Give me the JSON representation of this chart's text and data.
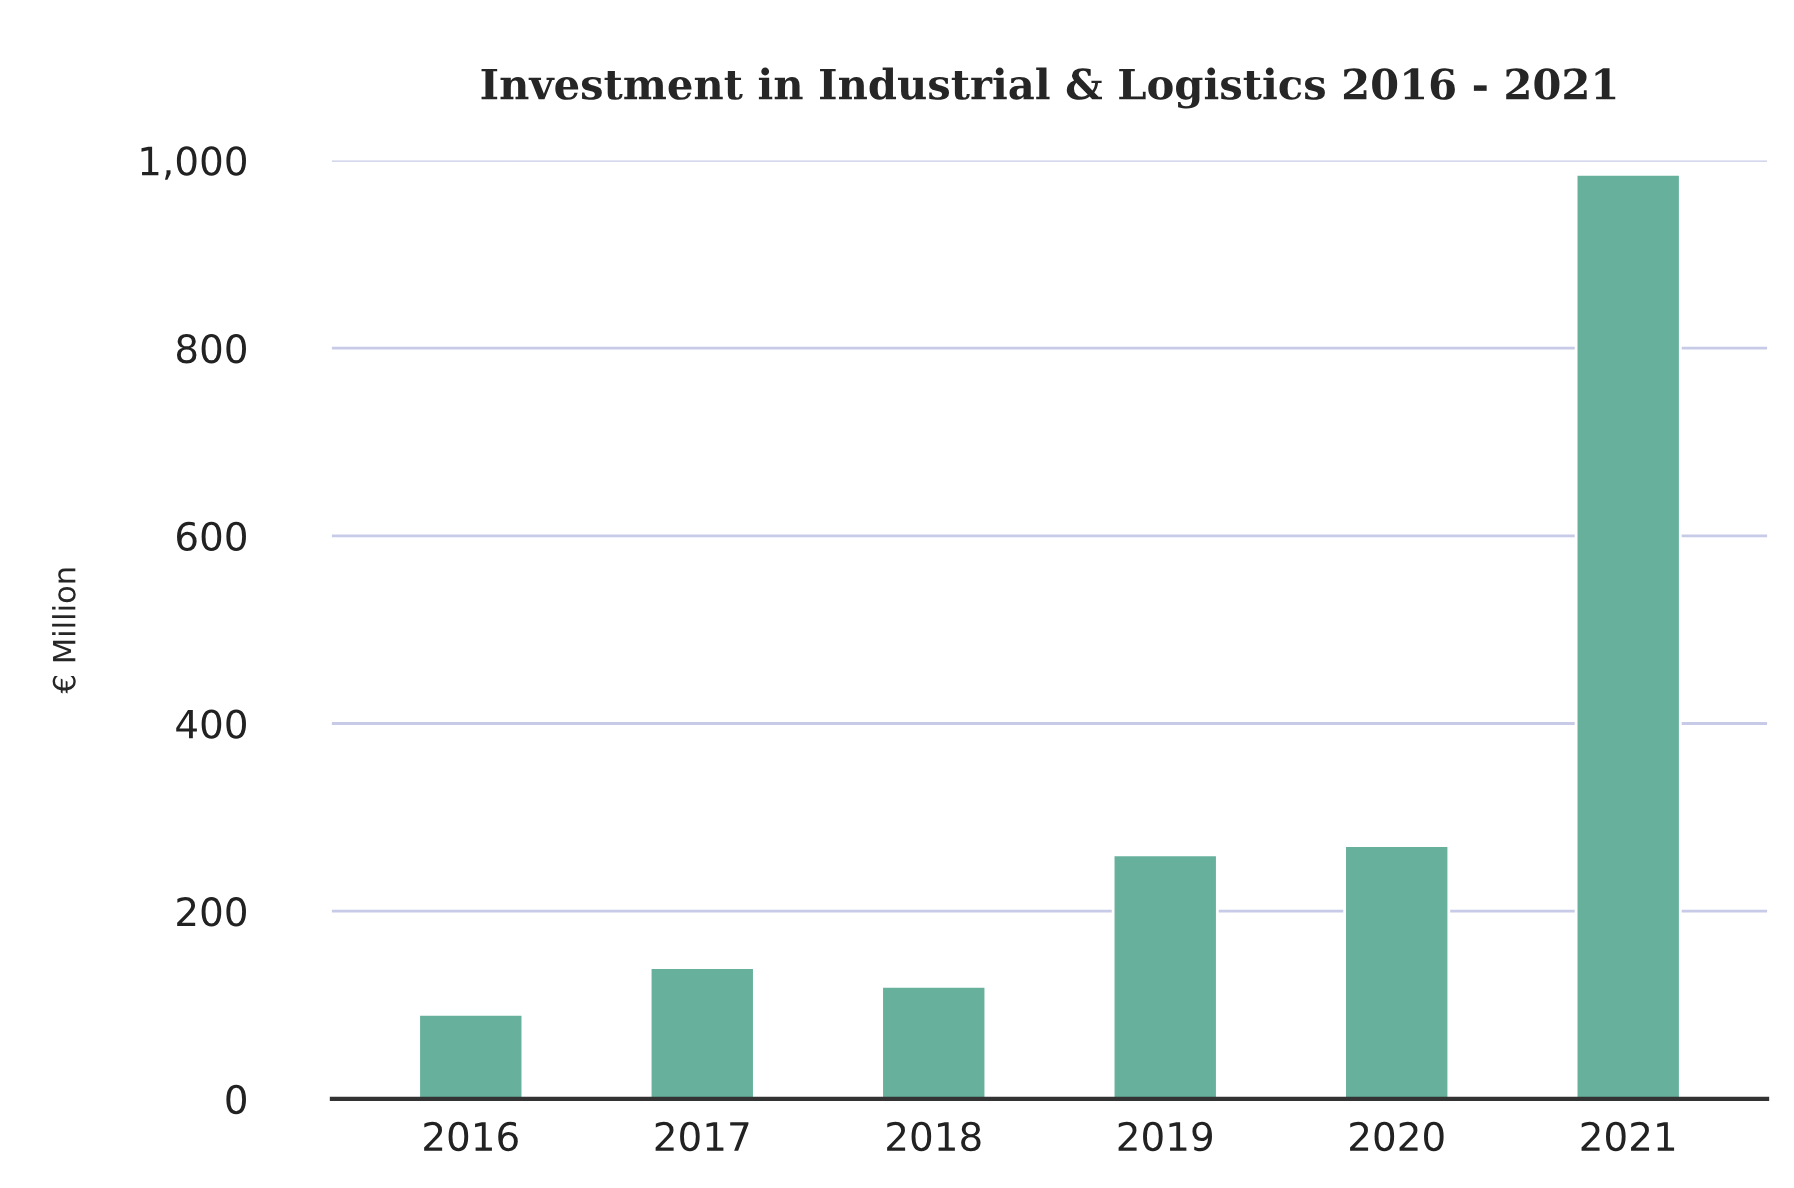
{
  "chart_data": {
    "type": "bar",
    "title": "Investment in Industrial & Logistics 2016 - 2021",
    "ylabel": "€ Million",
    "categories": [
      "2016",
      "2017",
      "2018",
      "2019",
      "2020",
      "2021"
    ],
    "values": [
      90,
      140,
      120,
      260,
      270,
      985
    ],
    "color": "#66b09c",
    "ylim": [
      0,
      1000
    ],
    "yticks": [
      0,
      {
        "value": 200,
        "label": "200"
      },
      {
        "value": 400,
        "label": "400"
      },
      {
        "value": 600,
        "label": "600"
      },
      {
        "value": 800,
        "label": "800"
      },
      {
        "value": 1000,
        "label": "1,000"
      }
    ],
    "grid": "y",
    "legend": false
  }
}
